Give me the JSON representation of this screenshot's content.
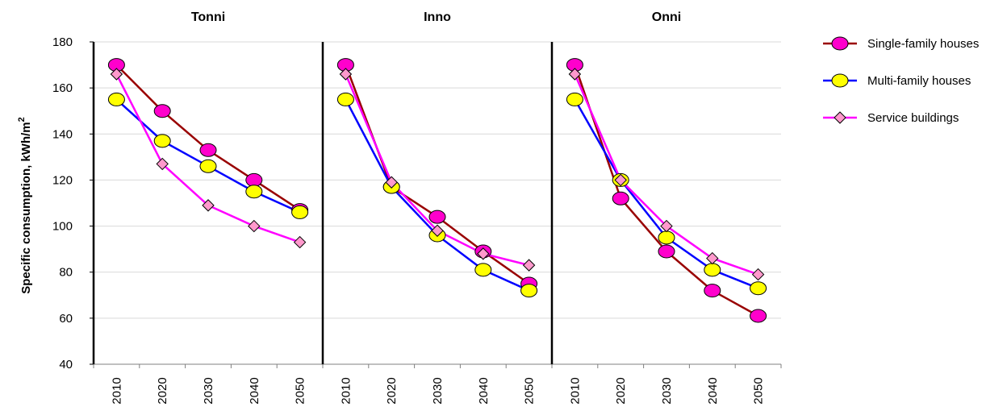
{
  "chart_data": {
    "type": "line",
    "title": "",
    "ylabel": "Specific consumption, kWh/m",
    "ylabel_sup": "2",
    "ylim": [
      40,
      180
    ],
    "yticks": [
      40,
      60,
      80,
      100,
      120,
      140,
      160,
      180
    ],
    "grid": true,
    "legend": "right",
    "categories": [
      "2010",
      "2020",
      "2030",
      "2040",
      "2050"
    ],
    "panels": [
      {
        "title": "Tonni",
        "series": [
          {
            "name": "Single-family houses",
            "values": [
              170,
              150,
              133,
              120,
              107
            ]
          },
          {
            "name": "Multi-family houses",
            "values": [
              155,
              137,
              126,
              115,
              106
            ]
          },
          {
            "name": "Service buildings",
            "values": [
              166,
              127,
              109,
              100,
              93
            ]
          }
        ]
      },
      {
        "title": "Inno",
        "series": [
          {
            "name": "Single-family houses",
            "values": [
              170,
              117,
              104,
              89,
              75
            ]
          },
          {
            "name": "Multi-family houses",
            "values": [
              155,
              117,
              96,
              81,
              72
            ]
          },
          {
            "name": "Service buildings",
            "values": [
              166,
              119,
              98,
              88,
              83
            ]
          }
        ]
      },
      {
        "title": "Onni",
        "series": [
          {
            "name": "Single-family houses",
            "values": [
              170,
              112,
              89,
              72,
              61
            ]
          },
          {
            "name": "Multi-family houses",
            "values": [
              155,
              120,
              95,
              81,
              73
            ]
          },
          {
            "name": "Service buildings",
            "values": [
              166,
              120,
              100,
              86,
              79
            ]
          }
        ]
      }
    ]
  },
  "legend": [
    {
      "name": "Single-family houses",
      "line_color": "#990000",
      "marker": "circle",
      "marker_fill": "#ff00cc"
    },
    {
      "name": "Multi-family houses",
      "line_color": "#0000ff",
      "marker": "circle",
      "marker_fill": "#ffff00"
    },
    {
      "name": "Service buildings",
      "line_color": "#ff00ff",
      "marker": "diamond",
      "marker_fill": "#ff99cc"
    }
  ]
}
